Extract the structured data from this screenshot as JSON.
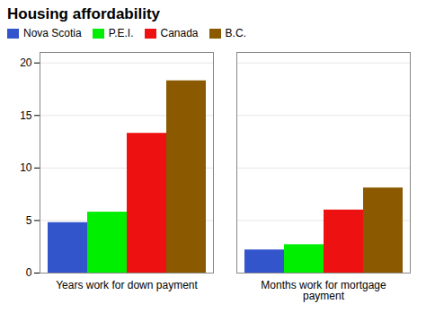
{
  "chart_data": {
    "type": "bar",
    "title": "Housing affordability",
    "categories": [
      "Years work for down payment",
      "Months work for mortgage\npayment"
    ],
    "series": [
      {
        "name": "Nova Scotia",
        "color": "#3355cc",
        "values": [
          4.8,
          2.2
        ]
      },
      {
        "name": "P.E.I.",
        "color": "#00ee00",
        "values": [
          5.8,
          2.7
        ]
      },
      {
        "name": "Canada",
        "color": "#ee1111",
        "values": [
          13.3,
          6.0
        ]
      },
      {
        "name": "B.C.",
        "color": "#8B5A00",
        "values": [
          18.3,
          8.1
        ]
      }
    ],
    "ylim": [
      0,
      21
    ],
    "yticks": [
      0,
      5,
      10,
      15,
      20
    ],
    "grid": true,
    "legend": "upper left"
  }
}
